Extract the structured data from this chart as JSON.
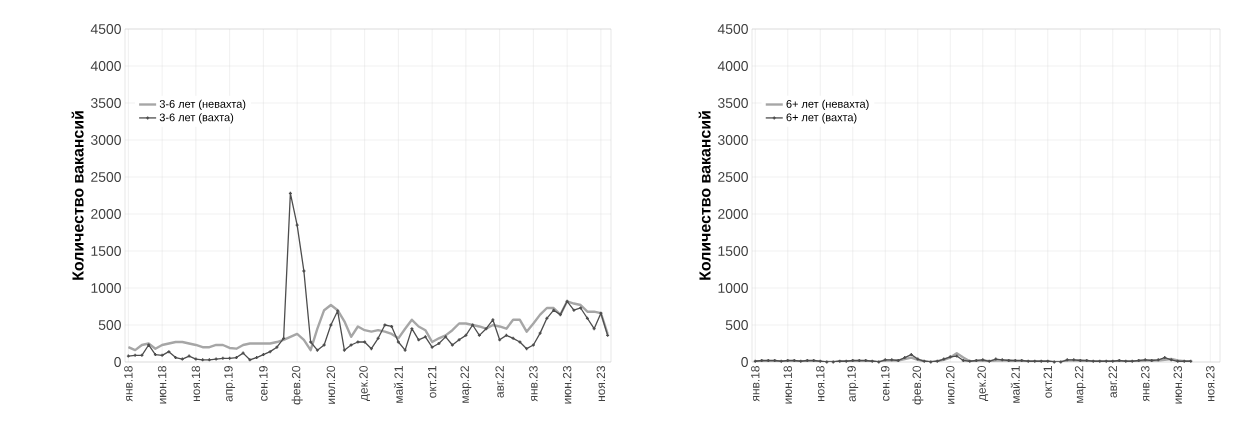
{
  "chart_data": [
    {
      "type": "line",
      "ylabel": "Количество вакансий",
      "categories": [
        "янв.18",
        null,
        null,
        null,
        null,
        "июн.18",
        null,
        null,
        null,
        null,
        "ноя.18",
        null,
        null,
        null,
        null,
        "апр.19",
        null,
        null,
        null,
        null,
        "сен.19",
        null,
        null,
        null,
        null,
        "фев.20",
        null,
        null,
        null,
        null,
        "июл.20",
        null,
        null,
        null,
        null,
        "дек.20",
        null,
        null,
        null,
        null,
        "май.21",
        null,
        null,
        null,
        null,
        "окт.21",
        null,
        null,
        null,
        null,
        "мар.22",
        null,
        null,
        null,
        null,
        "авг.22",
        null,
        null,
        null,
        null,
        "янв.23",
        null,
        null,
        null,
        null,
        "июн.23",
        null,
        null,
        null,
        null,
        "ноя.23",
        null
      ],
      "ylim": [
        0,
        4500
      ],
      "yticks": [
        0,
        500,
        1000,
        1500,
        2000,
        2500,
        3000,
        3500,
        4000,
        4500
      ],
      "grid": true,
      "legend": "top left",
      "series": [
        {
          "name": "3-6 лет (невахта)",
          "color": "#a6a6a6",
          "marker": "none",
          "values": [
            200,
            160,
            230,
            250,
            180,
            230,
            250,
            270,
            270,
            250,
            230,
            200,
            200,
            230,
            230,
            190,
            180,
            230,
            250,
            250,
            250,
            250,
            270,
            300,
            340,
            380,
            300,
            160,
            450,
            700,
            770,
            700,
            550,
            340,
            480,
            430,
            410,
            430,
            410,
            380,
            320,
            450,
            570,
            480,
            430,
            270,
            320,
            360,
            430,
            520,
            520,
            500,
            480,
            450,
            500,
            480,
            450,
            570,
            570,
            410,
            520,
            640,
            730,
            730,
            640,
            820,
            790,
            770,
            680,
            680,
            660,
            380
          ]
        },
        {
          "name": "3-6 лет (вахта)",
          "color": "#4d4d4d",
          "marker": "cross",
          "values": [
            80,
            90,
            90,
            230,
            100,
            90,
            140,
            60,
            40,
            80,
            40,
            30,
            30,
            40,
            50,
            50,
            60,
            120,
            30,
            60,
            100,
            140,
            200,
            320,
            2280,
            1850,
            1230,
            270,
            160,
            230,
            500,
            690,
            160,
            230,
            270,
            270,
            180,
            320,
            500,
            480,
            270,
            160,
            450,
            300,
            340,
            200,
            250,
            340,
            230,
            300,
            360,
            500,
            360,
            450,
            570,
            300,
            360,
            320,
            270,
            180,
            230,
            390,
            590,
            700,
            640,
            820,
            700,
            730,
            590,
            450,
            660,
            360
          ]
        }
      ]
    },
    {
      "type": "line",
      "ylabel": "Количество вакансий",
      "categories": [
        "янв.18",
        null,
        null,
        null,
        null,
        "июн.18",
        null,
        null,
        null,
        null,
        "ноя.18",
        null,
        null,
        null,
        null,
        "апр.19",
        null,
        null,
        null,
        null,
        "сен.19",
        null,
        null,
        null,
        null,
        "фев.20",
        null,
        null,
        null,
        null,
        "июл.20",
        null,
        null,
        null,
        null,
        "дек.20",
        null,
        null,
        null,
        null,
        "май.21",
        null,
        null,
        null,
        null,
        "окт.21",
        null,
        null,
        null,
        null,
        "мар.22",
        null,
        null,
        null,
        null,
        "авг.22",
        null,
        null,
        null,
        null,
        "янв.23",
        null,
        null,
        null,
        null,
        "июн.23",
        null,
        null,
        null,
        null,
        "ноя.23",
        null
      ],
      "ylim": [
        0,
        4500
      ],
      "yticks": [
        0,
        500,
        1000,
        1500,
        2000,
        2500,
        3000,
        3500,
        4000,
        4500
      ],
      "grid": true,
      "legend": "top left",
      "series": [
        {
          "name": "6+ лет (невахта)",
          "color": "#a6a6a6",
          "marker": "none",
          "values": [
            10,
            10,
            10,
            10,
            10,
            10,
            10,
            10,
            10,
            10,
            0,
            0,
            0,
            10,
            10,
            10,
            10,
            10,
            10,
            0,
            20,
            20,
            20,
            40,
            60,
            30,
            10,
            0,
            10,
            30,
            60,
            120,
            60,
            10,
            10,
            20,
            10,
            20,
            20,
            20,
            10,
            10,
            10,
            10,
            10,
            10,
            0,
            0,
            20,
            20,
            20,
            10,
            10,
            10,
            10,
            10,
            10,
            10,
            10,
            10,
            20,
            20,
            20,
            30,
            40,
            20,
            10,
            10,
            null,
            null,
            null,
            null
          ]
        },
        {
          "name": "6+ лет (вахта)",
          "color": "#4d4d4d",
          "marker": "cross",
          "values": [
            10,
            20,
            20,
            20,
            10,
            20,
            20,
            10,
            20,
            20,
            10,
            0,
            0,
            10,
            10,
            20,
            20,
            20,
            10,
            0,
            30,
            30,
            20,
            60,
            100,
            40,
            10,
            0,
            10,
            40,
            70,
            80,
            20,
            10,
            20,
            30,
            10,
            40,
            30,
            20,
            20,
            20,
            10,
            10,
            10,
            10,
            0,
            0,
            30,
            30,
            20,
            20,
            10,
            10,
            10,
            10,
            20,
            10,
            10,
            20,
            30,
            20,
            30,
            60,
            30,
            10,
            10,
            10,
            null,
            null,
            null,
            null
          ]
        }
      ]
    }
  ]
}
